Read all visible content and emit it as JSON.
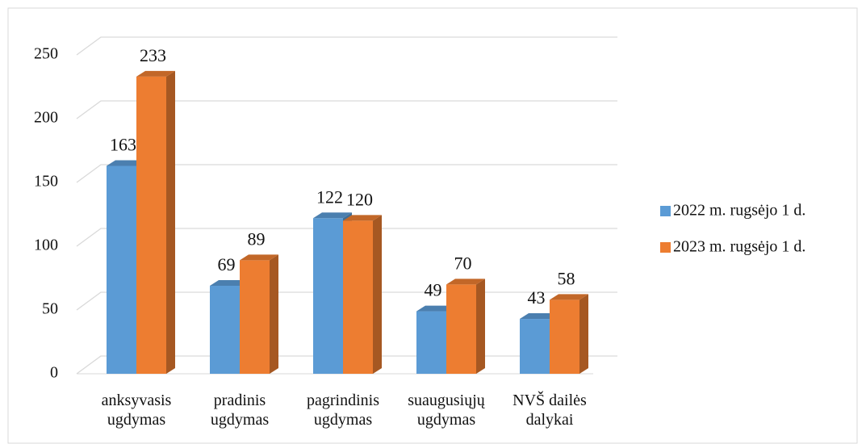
{
  "chart_data": {
    "type": "bar3d",
    "categories": [
      [
        "anksyvasis",
        "ugdymas"
      ],
      [
        "pradinis",
        "ugdymas"
      ],
      [
        "pagrindinis",
        "ugdymas"
      ],
      [
        "suaugusiųjų",
        "ugdymas"
      ],
      [
        "NVŠ dailės",
        "dalykai"
      ]
    ],
    "series": [
      {
        "name": "2022 m. rugsėjo 1 d.",
        "color": "#5b9bd5",
        "values": [
          163,
          69,
          122,
          49,
          43
        ]
      },
      {
        "name": "2023 m. rugsėjo 1 d.",
        "color": "#ed7d31",
        "values": [
          233,
          89,
          120,
          70,
          58
        ]
      }
    ],
    "ylim": [
      0,
      250
    ],
    "yticks": [
      0,
      50,
      100,
      150,
      200,
      250
    ],
    "grid": true,
    "legend": "right"
  }
}
